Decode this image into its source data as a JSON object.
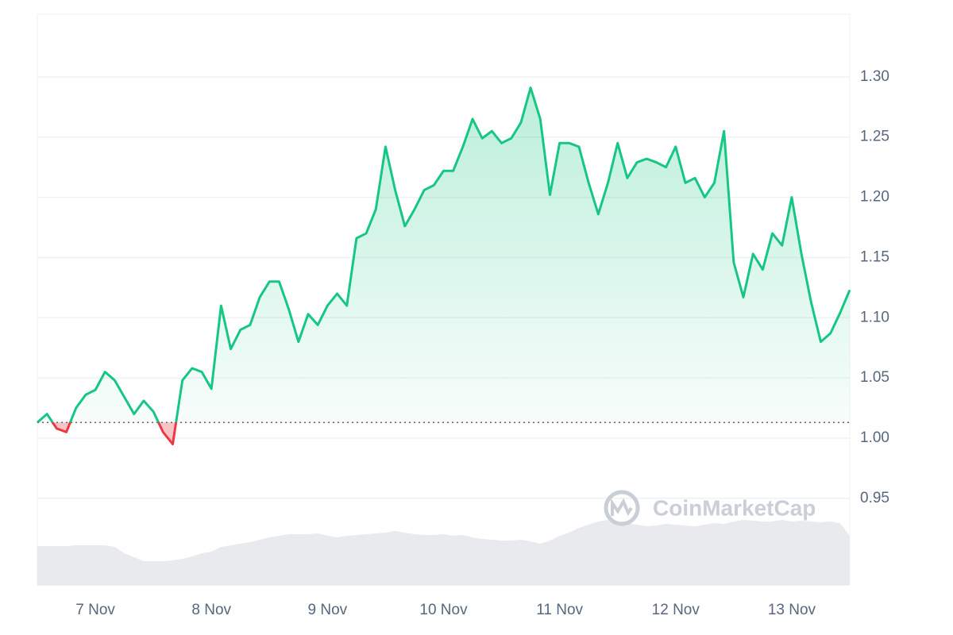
{
  "chart_data": {
    "type": "line",
    "categories": [
      null,
      null,
      null,
      null,
      null,
      null,
      "7 Nov",
      null,
      null,
      null,
      null,
      null,
      null,
      null,
      null,
      null,
      null,
      null,
      "8 Nov",
      null,
      null,
      null,
      null,
      null,
      null,
      null,
      null,
      null,
      null,
      null,
      "9 Nov",
      null,
      null,
      null,
      null,
      null,
      null,
      null,
      null,
      null,
      null,
      null,
      "10 Nov",
      null,
      null,
      null,
      null,
      null,
      null,
      null,
      null,
      null,
      null,
      null,
      "11 Nov",
      null,
      null,
      null,
      null,
      null,
      null,
      null,
      null,
      null,
      null,
      null,
      "12 Nov",
      null,
      null,
      null,
      null,
      null,
      null,
      null,
      null,
      null,
      null,
      null,
      "13 Nov",
      null,
      null,
      null,
      null,
      null,
      null
    ],
    "series": [
      {
        "values": [
          1.013,
          1.02,
          1.008,
          1.005,
          1.025,
          1.036,
          1.04,
          1.055,
          1.048,
          1.034,
          1.02,
          1.031,
          1.022,
          1.005,
          0.995,
          1.048,
          1.058,
          1.055,
          1.041,
          1.11,
          1.074,
          1.09,
          1.094,
          1.117,
          1.13,
          1.13,
          1.107,
          1.08,
          1.103,
          1.094,
          1.11,
          1.12,
          1.11,
          1.166,
          1.17,
          1.19,
          1.242,
          1.206,
          1.176,
          1.19,
          1.206,
          1.21,
          1.222,
          1.222,
          1.242,
          1.265,
          1.249,
          1.255,
          1.245,
          1.249,
          1.262,
          1.291,
          1.265,
          1.202,
          1.245,
          1.245,
          1.242,
          1.212,
          1.186,
          1.212,
          1.245,
          1.216,
          1.229,
          1.232,
          1.229,
          1.225,
          1.242,
          1.212,
          1.216,
          1.2,
          1.212,
          1.255,
          1.146,
          1.117,
          1.153,
          1.14,
          1.17,
          1.16,
          1.2,
          1.153,
          1.113,
          1.08,
          1.087,
          1.104,
          1.123
        ],
        "color": "#16c784",
        "below_color": "#ea3943"
      }
    ],
    "baseline": 1.013,
    "volume": {
      "values": [
        49,
        49,
        49,
        49,
        50,
        50,
        50,
        50,
        48,
        40,
        35,
        30,
        30,
        30,
        31,
        33,
        36,
        40,
        42,
        48,
        50,
        52,
        54,
        57,
        60,
        62,
        64,
        64,
        64,
        65,
        62,
        60,
        62,
        63,
        64,
        65,
        66,
        68,
        66,
        64,
        63,
        63,
        64,
        62,
        63,
        60,
        58,
        57,
        56,
        56,
        57,
        55,
        52,
        56,
        62,
        66,
        72,
        76,
        80,
        82,
        80,
        78,
        76,
        74,
        75,
        77,
        76,
        75,
        74,
        76,
        78,
        77,
        80,
        82,
        81,
        80,
        80,
        82,
        80,
        81,
        80,
        79,
        80,
        78,
        62
      ],
      "color": "#e9eaee"
    },
    "ylim": [
      0.878,
      1.352
    ],
    "yticks": [
      0.95,
      {
        "value": 1.0,
        "label": "1.00"
      },
      1.05,
      {
        "value": 1.1,
        "label": "1.10"
      },
      1.15,
      {
        "value": 1.2,
        "label": "1.20"
      },
      1.25,
      {
        "value": 1.3,
        "label": "1.30"
      }
    ],
    "grid": true,
    "watermark": "CoinMarketCap"
  }
}
